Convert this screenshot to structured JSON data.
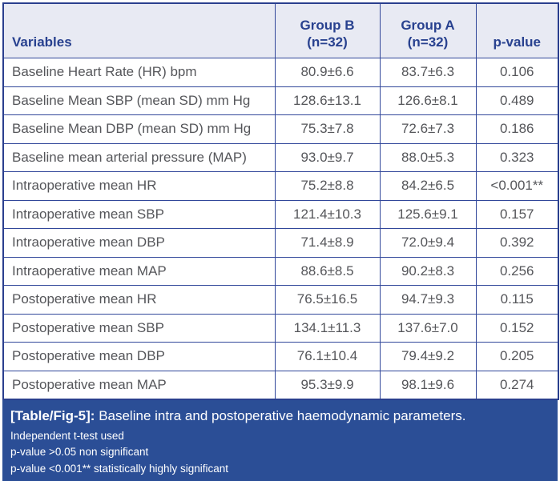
{
  "table": {
    "header": {
      "variables": "Variables",
      "group_b_line1": "Group B",
      "group_b_line2": "(n=32)",
      "group_a_line1": "Group A",
      "group_a_line2": "(n=32)",
      "p_value": "p-value"
    },
    "rows": [
      {
        "variable": "Baseline Heart Rate (HR) bpm",
        "group_b": "80.9±6.6",
        "group_a": "83.7±6.3",
        "p_value": "0.106"
      },
      {
        "variable": "Baseline Mean SBP (mean SD) mm Hg",
        "group_b": "128.6±13.1",
        "group_a": "126.6±8.1",
        "p_value": "0.489"
      },
      {
        "variable": "Baseline Mean DBP (mean SD) mm Hg",
        "group_b": "75.3±7.8",
        "group_a": "72.6±7.3",
        "p_value": "0.186"
      },
      {
        "variable": "Baseline mean arterial pressure (MAP)",
        "group_b": "93.0±9.7",
        "group_a": "88.0±5.3",
        "p_value": "0.323"
      },
      {
        "variable": "Intraoperative mean HR",
        "group_b": "75.2±8.8",
        "group_a": "84.2±6.5",
        "p_value": "<0.001**"
      },
      {
        "variable": "Intraoperative mean SBP",
        "group_b": "121.4±10.3",
        "group_a": "125.6±9.1",
        "p_value": "0.157"
      },
      {
        "variable": "Intraoperative mean DBP",
        "group_b": "71.4±8.9",
        "group_a": "72.0±9.4",
        "p_value": "0.392"
      },
      {
        "variable": "Intraoperative mean MAP",
        "group_b": "88.6±8.5",
        "group_a": "90.2±8.3",
        "p_value": "0.256"
      },
      {
        "variable": "Postoperative mean HR",
        "group_b": "76.5±16.5",
        "group_a": "94.7±9.3",
        "p_value": "0.115"
      },
      {
        "variable": "Postoperative mean SBP",
        "group_b": "134.1±11.3",
        "group_a": "137.6±7.0",
        "p_value": "0.152"
      },
      {
        "variable": "Postoperative mean DBP",
        "group_b": "76.1±10.4",
        "group_a": "79.4±9.2",
        "p_value": "0.205"
      },
      {
        "variable": "Postoperative mean MAP",
        "group_b": "95.3±9.9",
        "group_a": "98.1±9.6",
        "p_value": "0.274"
      }
    ]
  },
  "caption": {
    "label": "[Table/Fig-5]:",
    "text": "Baseline intra and postoperative haemodynamic parameters."
  },
  "footnotes": [
    "Independent t-test used",
    "p-value >0.05 non significant",
    "p-value <0.001** statistically highly significant"
  ],
  "colors": {
    "header_bg": "#e8eaf3",
    "header_text": "#28418f",
    "body_text": "#55565a",
    "border": "#31479a",
    "caption_bg": "#2b4e96",
    "caption_text": "#ffffff"
  }
}
